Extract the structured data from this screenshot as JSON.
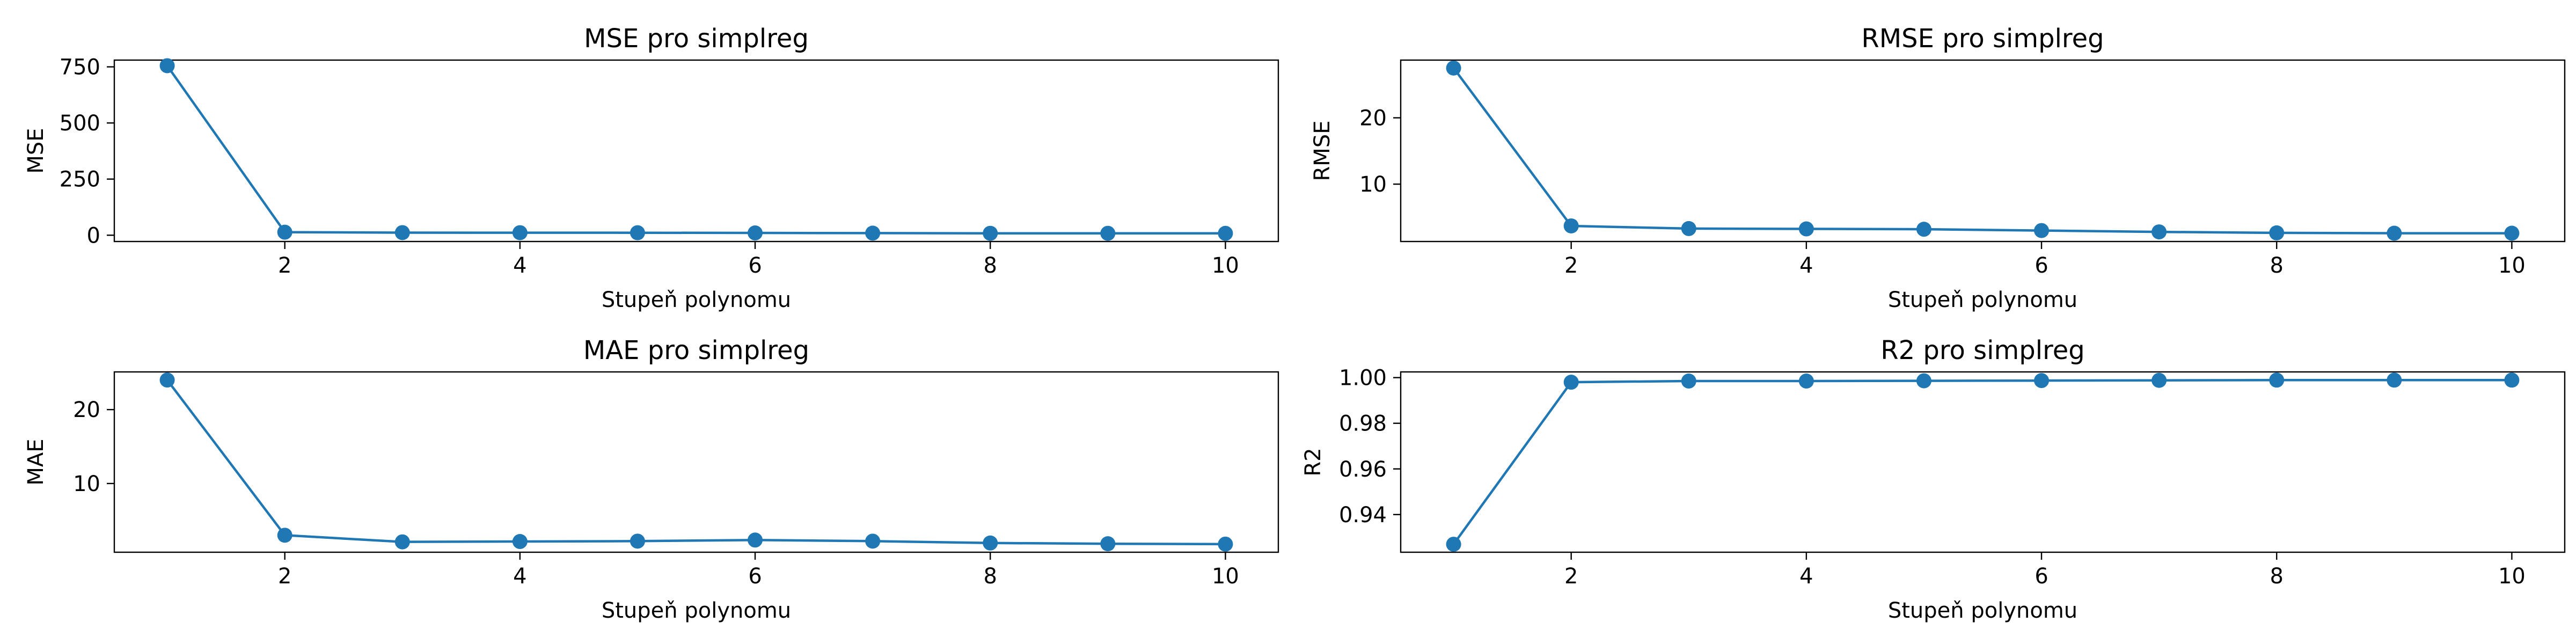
{
  "chart_data": [
    {
      "type": "line",
      "title": "MSE pro simplreg",
      "xlabel": "Stupeň polynomu",
      "ylabel": "MSE",
      "x": [
        1,
        2,
        3,
        4,
        5,
        6,
        7,
        8,
        9,
        10
      ],
      "series": [
        {
          "values": [
            755,
            13.5,
            11.5,
            11.2,
            11.0,
            10.2,
            9.3,
            8.6,
            8.5,
            8.4
          ]
        }
      ],
      "xticks": [
        2,
        4,
        6,
        8,
        10
      ],
      "yticks": [
        0,
        250,
        500,
        750
      ],
      "xlim": [
        0.55,
        10.45
      ],
      "ylim": [
        -28,
        780
      ],
      "grid": false,
      "color": "#1f77b4"
    },
    {
      "type": "line",
      "title": "RMSE pro simplreg",
      "xlabel": "Stupeň polynomu",
      "ylabel": "RMSE",
      "x": [
        1,
        2,
        3,
        4,
        5,
        6,
        7,
        8,
        9,
        10
      ],
      "series": [
        {
          "values": [
            27.5,
            3.7,
            3.3,
            3.25,
            3.2,
            3.0,
            2.8,
            2.65,
            2.6,
            2.6
          ]
        }
      ],
      "xticks": [
        2,
        4,
        6,
        8,
        10
      ],
      "yticks": [
        10,
        20
      ],
      "xlim": [
        0.55,
        10.45
      ],
      "ylim": [
        1.35,
        28.7
      ],
      "grid": false,
      "color": "#1f77b4"
    },
    {
      "type": "line",
      "title": "MAE pro simplreg",
      "xlabel": "Stupeň polynomu",
      "ylabel": "MAE",
      "x": [
        1,
        2,
        3,
        4,
        5,
        6,
        7,
        8,
        9,
        10
      ],
      "series": [
        {
          "values": [
            24.0,
            3.0,
            2.1,
            2.15,
            2.2,
            2.35,
            2.2,
            1.95,
            1.85,
            1.8
          ]
        }
      ],
      "xticks": [
        2,
        4,
        6,
        8,
        10
      ],
      "yticks": [
        10,
        20
      ],
      "xlim": [
        0.55,
        10.45
      ],
      "ylim": [
        0.7,
        25.1
      ],
      "grid": false,
      "color": "#1f77b4"
    },
    {
      "type": "line",
      "title": "R2 pro simplreg",
      "xlabel": "Stupeň polynomu",
      "ylabel": "R2",
      "x": [
        1,
        2,
        3,
        4,
        5,
        6,
        7,
        8,
        9,
        10
      ],
      "series": [
        {
          "values": [
            0.927,
            0.998,
            0.9985,
            0.9985,
            0.9986,
            0.9987,
            0.9988,
            0.9989,
            0.9989,
            0.9989
          ]
        }
      ],
      "xticks": [
        2,
        4,
        6,
        8,
        10
      ],
      "yticks": [
        0.94,
        0.96,
        0.98,
        1.0
      ],
      "yticklabels": [
        "0.94",
        "0.96",
        "0.98",
        "1.00"
      ],
      "xlim": [
        0.55,
        10.45
      ],
      "ylim": [
        0.9235,
        1.0025
      ],
      "grid": false,
      "color": "#1f77b4"
    }
  ]
}
